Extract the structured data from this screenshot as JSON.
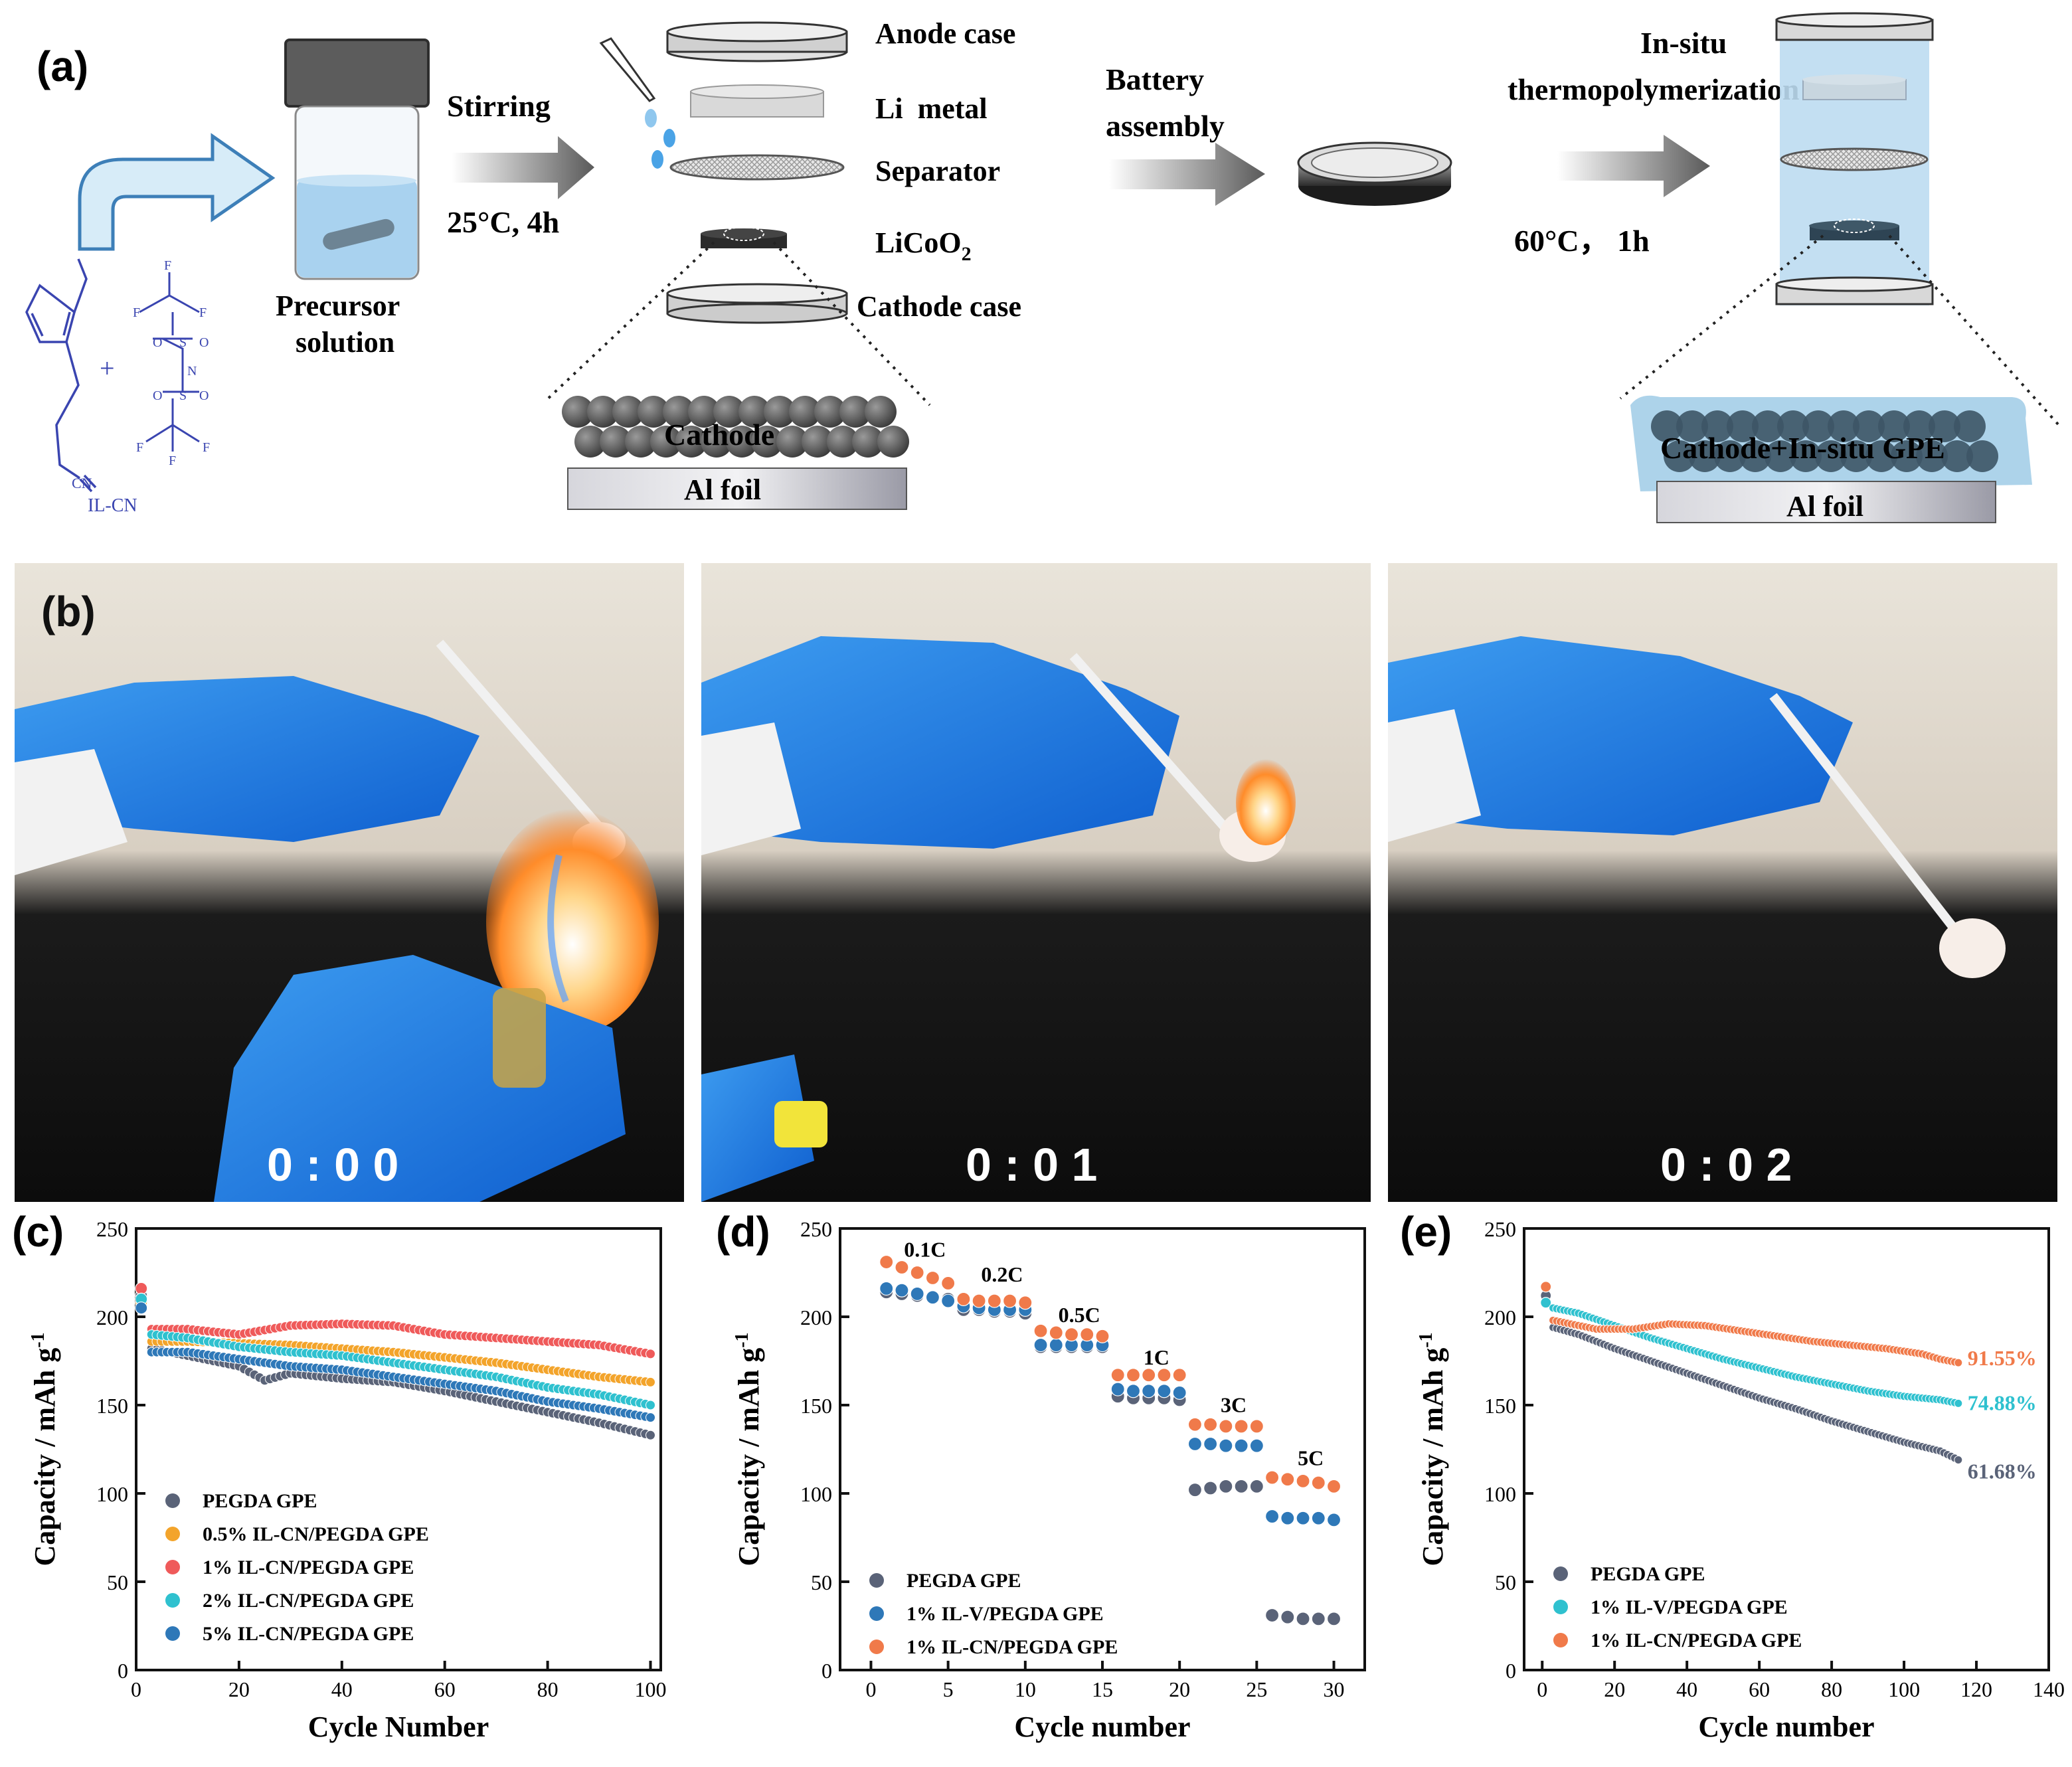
{
  "panel_a": {
    "label": "(a)",
    "stirring": "Stirring",
    "stirring_cond": "25°C, 4h",
    "precursor_line1": "Precursor",
    "precursor_line2": "solution",
    "molecule_name": "IL-CN",
    "molecule_cn": "CN",
    "plus": "+",
    "components": [
      "Anode case",
      "Li  metal",
      "Separator",
      "LiCoO",
      "Cathode case"
    ],
    "licoo_sub": "2",
    "battery_line1": "Battery",
    "battery_line2": "assembly",
    "insitu_line1": "In-situ",
    "insitu_line2": "thermopolymerization",
    "heat_cond": "60°C， 1h",
    "cathode_label": "Cathode",
    "al_foil": "Al foil",
    "cathode_gpe_label": "Cathode+In-situ GPE",
    "al_foil_2": "Al foil"
  },
  "panel_b": {
    "label": "(b)",
    "timestamps": [
      "0 : 0 0",
      "0 : 0 1",
      "0 : 0 2"
    ]
  },
  "chart_data": [
    {
      "id": "c",
      "label": "(c)",
      "type": "scatter",
      "xlabel": "Cycle Number",
      "ylabel": "Capacity / mAh g",
      "ylabel_sup": "-1",
      "xlim": [
        0,
        102
      ],
      "ylim": [
        0,
        250
      ],
      "xticks": [
        0,
        20,
        40,
        60,
        80,
        100
      ],
      "yticks": [
        0,
        50,
        100,
        150,
        200,
        250
      ],
      "legend_position": "bottom-left",
      "series": [
        {
          "name": "PEGDA GPE",
          "color": "#5a6378",
          "start": 212,
          "points": [
            [
              3,
              182
            ],
            [
              10,
              178
            ],
            [
              20,
              172
            ],
            [
              25,
              164
            ],
            [
              30,
              168
            ],
            [
              40,
              165
            ],
            [
              50,
              163
            ],
            [
              60,
              158
            ],
            [
              70,
              152
            ],
            [
              80,
              146
            ],
            [
              90,
              140
            ],
            [
              100,
              133
            ]
          ]
        },
        {
          "name": "0.5% IL-CN/PEGDA GPE",
          "color": "#f3a42b",
          "start": 208,
          "points": [
            [
              3,
              186
            ],
            [
              10,
              186
            ],
            [
              20,
              185
            ],
            [
              30,
              184
            ],
            [
              40,
              182
            ],
            [
              50,
              180
            ],
            [
              60,
              177
            ],
            [
              70,
              174
            ],
            [
              80,
              170
            ],
            [
              90,
              166
            ],
            [
              100,
              163
            ]
          ]
        },
        {
          "name": "1% IL-CN/PEGDA GPE",
          "color": "#ef5a5a",
          "start": 216,
          "points": [
            [
              3,
              193
            ],
            [
              10,
              193
            ],
            [
              20,
              190
            ],
            [
              30,
              195
            ],
            [
              40,
              196
            ],
            [
              50,
              195
            ],
            [
              60,
              190
            ],
            [
              70,
              188
            ],
            [
              80,
              186
            ],
            [
              90,
              184
            ],
            [
              100,
              179
            ]
          ]
        },
        {
          "name": "2% IL-CN/PEGDA GPE",
          "color": "#2fc1cf",
          "start": 210,
          "points": [
            [
              3,
              190
            ],
            [
              10,
              188
            ],
            [
              20,
              183
            ],
            [
              30,
              180
            ],
            [
              40,
              178
            ],
            [
              50,
              174
            ],
            [
              60,
              170
            ],
            [
              70,
              166
            ],
            [
              80,
              160
            ],
            [
              90,
              156
            ],
            [
              100,
              150
            ]
          ]
        },
        {
          "name": "5% IL-CN/PEGDA GPE",
          "color": "#2e78b8",
          "start": 205,
          "points": [
            [
              3,
              180
            ],
            [
              10,
              180
            ],
            [
              20,
              176
            ],
            [
              30,
              172
            ],
            [
              40,
              170
            ],
            [
              50,
              166
            ],
            [
              60,
              162
            ],
            [
              70,
              158
            ],
            [
              80,
              152
            ],
            [
              90,
              148
            ],
            [
              100,
              143
            ]
          ]
        }
      ]
    },
    {
      "id": "d",
      "label": "(d)",
      "type": "scatter",
      "xlabel": "Cycle number",
      "ylabel": "Capacity / mAh g",
      "ylabel_sup": "-1",
      "xlim": [
        -2,
        32
      ],
      "ylim": [
        0,
        250
      ],
      "xticks": [
        0,
        5,
        10,
        15,
        20,
        25,
        30
      ],
      "yticks": [
        0,
        50,
        100,
        150,
        200,
        250
      ],
      "legend_position": "bottom-left",
      "rate_labels": [
        {
          "text": "0.1C",
          "x": 3.5,
          "y": 234
        },
        {
          "text": "0.2C",
          "x": 8.5,
          "y": 220
        },
        {
          "text": "0.5C",
          "x": 13.5,
          "y": 197
        },
        {
          "text": "1C",
          "x": 18.5,
          "y": 173
        },
        {
          "text": "3C",
          "x": 23.5,
          "y": 146
        },
        {
          "text": "5C",
          "x": 28.5,
          "y": 116
        }
      ],
      "series": [
        {
          "name": "PEGDA GPE",
          "color": "#5a6378",
          "values": [
            214,
            213,
            212,
            211,
            210,
            204,
            204,
            203,
            203,
            202,
            183,
            183,
            183,
            183,
            183,
            155,
            154,
            154,
            154,
            153,
            102,
            103,
            104,
            104,
            104,
            31,
            30,
            29,
            29,
            29
          ]
        },
        {
          "name": "1% IL-V/PEGDA GPE",
          "color": "#2e78b8",
          "values": [
            216,
            215,
            213,
            211,
            209,
            206,
            205,
            204,
            204,
            204,
            184,
            184,
            184,
            184,
            184,
            159,
            158,
            158,
            158,
            157,
            128,
            128,
            127,
            127,
            127,
            87,
            86,
            86,
            86,
            85
          ]
        },
        {
          "name": "1% IL-CN/PEGDA GPE",
          "color": "#f07a4a",
          "values": [
            231,
            228,
            225,
            222,
            219,
            210,
            209,
            209,
            209,
            208,
            192,
            191,
            190,
            190,
            189,
            167,
            167,
            167,
            167,
            167,
            139,
            139,
            138,
            138,
            138,
            109,
            108,
            107,
            106,
            104
          ]
        }
      ]
    },
    {
      "id": "e",
      "label": "(e)",
      "type": "scatter",
      "xlabel": "Cycle number",
      "ylabel": "Capacity / mAh g",
      "ylabel_sup": "-1",
      "xlim": [
        -5,
        140
      ],
      "ylim": [
        0,
        250
      ],
      "xticks": [
        0,
        20,
        40,
        60,
        80,
        100,
        120,
        140
      ],
      "yticks": [
        0,
        50,
        100,
        150,
        200,
        250
      ],
      "legend_position": "bottom-left",
      "series": [
        {
          "name": "PEGDA GPE",
          "color": "#5a6378",
          "start": 212,
          "end_label": "61.68%",
          "points": [
            [
              3,
              194
            ],
            [
              10,
              190
            ],
            [
              20,
              182
            ],
            [
              30,
              175
            ],
            [
              40,
              168
            ],
            [
              50,
              161
            ],
            [
              60,
              154
            ],
            [
              70,
              148
            ],
            [
              80,
              141
            ],
            [
              90,
              135
            ],
            [
              100,
              129
            ],
            [
              110,
              124
            ],
            [
              115,
              119
            ]
          ]
        },
        {
          "name": "1% IL-V/PEGDA GPE",
          "color": "#2fc1cf",
          "start": 208,
          "end_label": "74.88%",
          "points": [
            [
              3,
              205
            ],
            [
              10,
              202
            ],
            [
              20,
              195
            ],
            [
              30,
              188
            ],
            [
              40,
              182
            ],
            [
              50,
              176
            ],
            [
              60,
              171
            ],
            [
              70,
              166
            ],
            [
              80,
              162
            ],
            [
              90,
              158
            ],
            [
              100,
              155
            ],
            [
              110,
              153
            ],
            [
              115,
              151
            ]
          ]
        },
        {
          "name": "1% IL-CN/PEGDA GPE",
          "color": "#f07a4a",
          "start": 217,
          "end_label": "91.55%",
          "points": [
            [
              3,
              198
            ],
            [
              15,
              193
            ],
            [
              25,
              193
            ],
            [
              35,
              196
            ],
            [
              45,
              195
            ],
            [
              55,
              192
            ],
            [
              65,
              189
            ],
            [
              75,
              186
            ],
            [
              85,
              184
            ],
            [
              95,
              182
            ],
            [
              105,
              179
            ],
            [
              110,
              176
            ],
            [
              115,
              174
            ]
          ]
        }
      ]
    }
  ]
}
